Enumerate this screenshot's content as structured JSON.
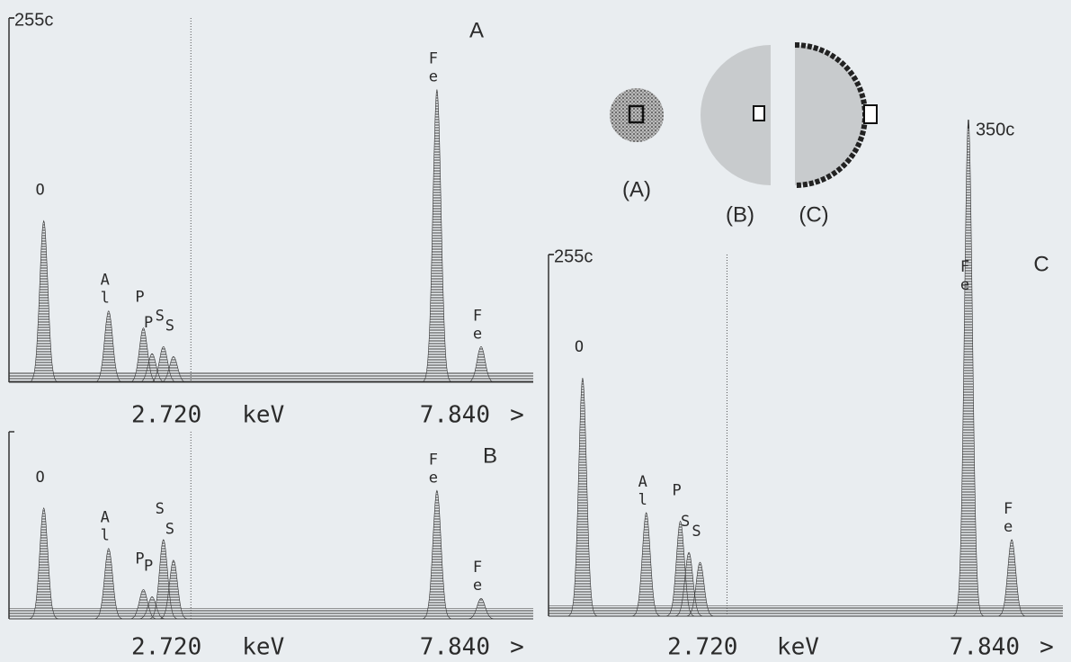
{
  "chart_data": [
    {
      "type": "spectrum",
      "title": "A",
      "x_label": "keV",
      "x_more": ">",
      "xlim": [
        0,
        7.84
      ],
      "xticks": [
        {
          "value": 2.72,
          "label": "2.720"
        },
        {
          "value": 7.84,
          "label": "7.840"
        }
      ],
      "ylim": [
        0,
        255
      ],
      "yticks": [
        {
          "value": 255,
          "label": "255c"
        }
      ],
      "peaks": [
        {
          "label": "O",
          "x": 0.52,
          "height": 113
        },
        {
          "label": "Al",
          "x": 1.49,
          "height": 50
        },
        {
          "label": "P",
          "x": 2.01,
          "height": 38
        },
        {
          "label": "P",
          "x": 2.14,
          "height": 20
        },
        {
          "label": "S",
          "x": 2.31,
          "height": 25
        },
        {
          "label": "S",
          "x": 2.46,
          "height": 18
        },
        {
          "label": "Fe",
          "x": 6.4,
          "height": 205
        },
        {
          "label": "Fe",
          "x": 7.06,
          "height": 25
        }
      ]
    },
    {
      "type": "spectrum",
      "title": "B",
      "x_label": "keV",
      "x_more": ">",
      "xlim": [
        0,
        7.84
      ],
      "xticks": [
        {
          "value": 2.72,
          "label": "2.720"
        },
        {
          "value": 7.84,
          "label": "7.840"
        }
      ],
      "ylim": [
        0,
        255
      ],
      "yticks": [],
      "peaks": [
        {
          "label": "O",
          "x": 0.52,
          "height": 151
        },
        {
          "label": "Al",
          "x": 1.49,
          "height": 96
        },
        {
          "label": "P",
          "x": 2.01,
          "height": 40
        },
        {
          "label": "P",
          "x": 2.14,
          "height": 30
        },
        {
          "label": "S",
          "x": 2.31,
          "height": 108
        },
        {
          "label": "S",
          "x": 2.46,
          "height": 80
        },
        {
          "label": "Fe",
          "x": 6.4,
          "height": 175
        },
        {
          "label": "Fe",
          "x": 7.06,
          "height": 28
        }
      ]
    },
    {
      "type": "spectrum",
      "title": "C",
      "x_label": "keV",
      "x_more": ">",
      "xlim": [
        0,
        7.84
      ],
      "xticks": [
        {
          "value": 2.72,
          "label": "2.720"
        },
        {
          "value": 7.84,
          "label": "7.840"
        }
      ],
      "ylim": [
        0,
        255
      ],
      "yticks": [
        {
          "value": 255,
          "label": "255c"
        }
      ],
      "peak_scale": {
        "value": 350,
        "label": "350c"
      },
      "peaks": [
        {
          "label": "O",
          "x": 0.52,
          "height": 168
        },
        {
          "label": "Al",
          "x": 1.49,
          "height": 73
        },
        {
          "label": "P",
          "x": 2.01,
          "height": 67
        },
        {
          "label": "S",
          "x": 2.14,
          "height": 45
        },
        {
          "label": "S",
          "x": 2.31,
          "height": 38
        },
        {
          "label": "Fe",
          "x": 6.4,
          "height": 350
        },
        {
          "label": "Fe",
          "x": 7.06,
          "height": 54
        }
      ]
    }
  ],
  "inset": {
    "labels": [
      "(A)",
      "(B)",
      "(C)"
    ]
  }
}
